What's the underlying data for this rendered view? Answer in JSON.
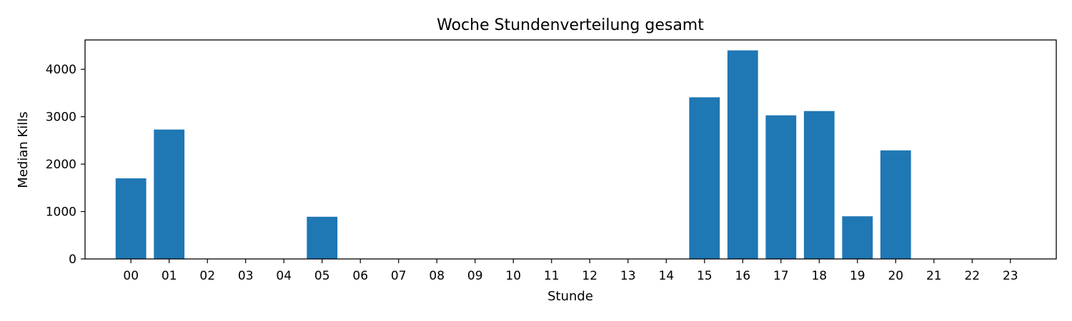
{
  "chart_data": {
    "type": "bar",
    "title": "Woche Stundenverteilung gesamt",
    "xlabel": "Stunde",
    "ylabel": "Median Kills",
    "categories": [
      "00",
      "01",
      "02",
      "03",
      "04",
      "05",
      "06",
      "07",
      "08",
      "09",
      "10",
      "11",
      "12",
      "13",
      "14",
      "15",
      "16",
      "17",
      "18",
      "19",
      "20",
      "21",
      "22",
      "23"
    ],
    "values": [
      1700,
      2730,
      0,
      0,
      0,
      890,
      0,
      0,
      0,
      0,
      0,
      0,
      0,
      0,
      0,
      3410,
      4400,
      3030,
      3120,
      900,
      2290,
      0,
      0,
      0
    ],
    "ylim": [
      0,
      4620
    ],
    "yticks": [
      0,
      1000,
      2000,
      3000,
      4000
    ],
    "bar_color": "#1f77b4",
    "grid": false,
    "legend": "none"
  }
}
